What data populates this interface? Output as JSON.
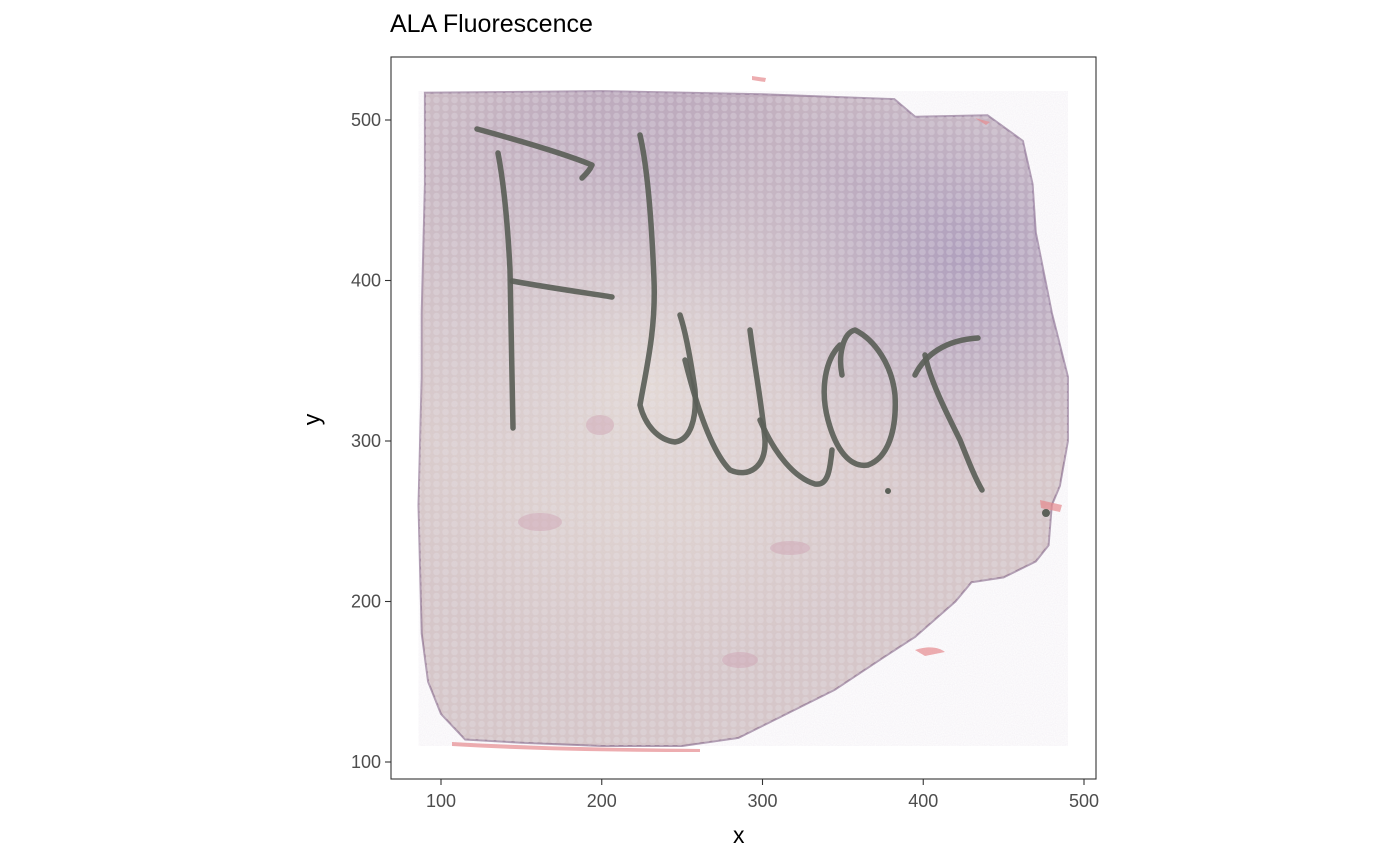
{
  "chart_data": {
    "type": "image-scatter",
    "title": "ALA Fluorescence",
    "xlabel": "x",
    "ylabel": "y",
    "xlim": [
      85,
      507
    ],
    "ylim": [
      88,
      540
    ],
    "x_ticks": [
      100,
      200,
      300,
      400,
      500
    ],
    "y_ticks": [
      100,
      200,
      300,
      400,
      500
    ],
    "grid": false,
    "panel_border": true,
    "background_image": "H&E tissue section with handwritten marker annotation",
    "handwritten_annotation": "Fluor",
    "spot_overlay": {
      "marker": "circle",
      "color": "#d9d9dc",
      "opacity": 0.35
    },
    "tissue_outline": [
      [
        90,
        517
      ],
      [
        200,
        518
      ],
      [
        300,
        516
      ],
      [
        382,
        513
      ],
      [
        395,
        502
      ],
      [
        440,
        503
      ],
      [
        462,
        487
      ],
      [
        468,
        460
      ],
      [
        470,
        430
      ],
      [
        475,
        405
      ],
      [
        480,
        380
      ],
      [
        485,
        360
      ],
      [
        490,
        340
      ],
      [
        490,
        300
      ],
      [
        485,
        272
      ],
      [
        480,
        260
      ],
      [
        478,
        235
      ],
      [
        470,
        225
      ],
      [
        450,
        215
      ],
      [
        430,
        212
      ],
      [
        420,
        200
      ],
      [
        395,
        178
      ],
      [
        375,
        165
      ],
      [
        360,
        155
      ],
      [
        345,
        145
      ],
      [
        315,
        130
      ],
      [
        285,
        115
      ],
      [
        250,
        110
      ],
      [
        200,
        110
      ],
      [
        150,
        112
      ],
      [
        115,
        114
      ],
      [
        100,
        130
      ],
      [
        92,
        150
      ],
      [
        88,
        180
      ],
      [
        87,
        220
      ],
      [
        86,
        260
      ],
      [
        87,
        300
      ],
      [
        88,
        340
      ],
      [
        88,
        380
      ],
      [
        89,
        420
      ],
      [
        90,
        460
      ],
      [
        90,
        500
      ]
    ],
    "colors": {
      "tissue_light": "#e3d8cf",
      "tissue_purple": "#a994b2",
      "tissue_pink": "#d9b3c4",
      "marker_ink": "#5b6058",
      "axis_text": "#4d4d4d",
      "panel_border": "#333333"
    }
  }
}
